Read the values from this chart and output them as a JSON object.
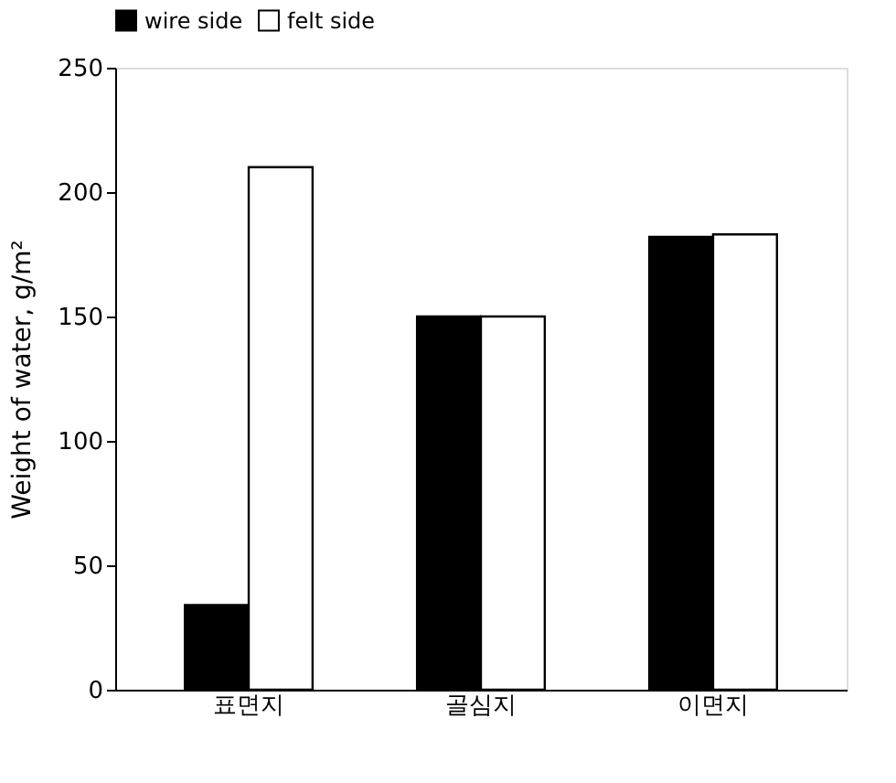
{
  "chart_data": {
    "type": "bar",
    "ylabel": "Weight of water, g/m²",
    "categories": [
      "표면지",
      "골심지",
      "이면지"
    ],
    "series": [
      {
        "name": "wire side",
        "color": "#000000",
        "values": [
          34,
          150,
          182
        ]
      },
      {
        "name": "felt side",
        "color": "#ffffff",
        "values": [
          210,
          150,
          183
        ]
      }
    ],
    "ylim": [
      0,
      250
    ],
    "yticks": [
      0,
      50,
      100,
      150,
      200,
      250
    ],
    "grid": false,
    "legend": "top"
  }
}
